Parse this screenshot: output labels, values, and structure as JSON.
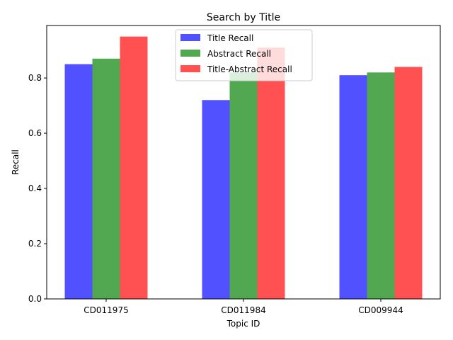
{
  "chart_data": {
    "type": "bar",
    "title": "Search by Title",
    "xlabel": "Topic ID",
    "ylabel": "Recall",
    "categories": [
      "CD011975",
      "CD011984",
      "CD009944"
    ],
    "ylim": [
      0,
      0.99
    ],
    "yticks": [
      0.0,
      0.2,
      0.4,
      0.6,
      0.8
    ],
    "ytick_labels": [
      "0.0",
      "0.2",
      "0.4",
      "0.6",
      "0.8"
    ],
    "grid": false,
    "legend_position": "top-center",
    "series": [
      {
        "name": "Title Recall",
        "color": "#3333ff",
        "values": [
          0.85,
          0.72,
          0.81
        ]
      },
      {
        "name": "Abstract Recall",
        "color": "#339933",
        "values": [
          0.87,
          0.82,
          0.82
        ]
      },
      {
        "name": "Title-Abstract Recall",
        "color": "#ff3333",
        "values": [
          0.95,
          0.91,
          0.84
        ]
      }
    ]
  }
}
